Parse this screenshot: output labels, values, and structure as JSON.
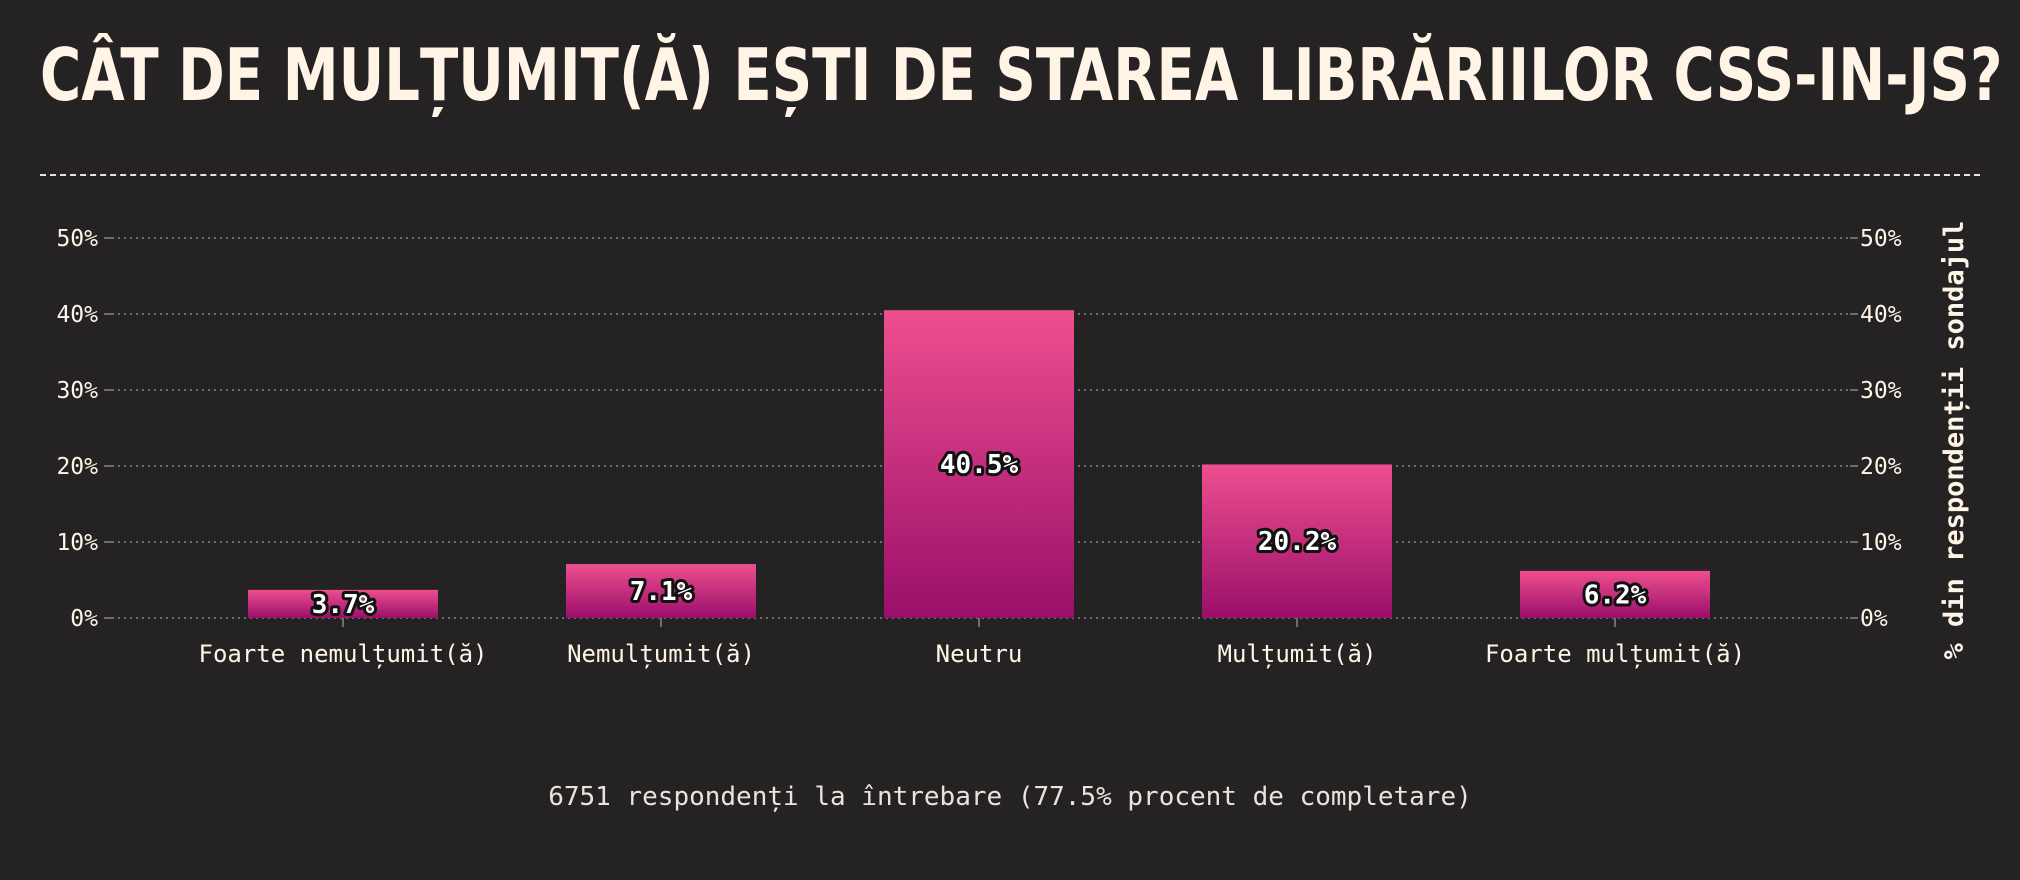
{
  "colors": {
    "background": "#252224",
    "text": "#fff4e6",
    "muted_text": "#e9e4da",
    "grid": "#8a8587",
    "bar_top": "#ee4f8f",
    "bar_bottom": "#9a0f6a"
  },
  "header": {
    "title": "CÂT DE MULȚUMIT(Ă) EȘTI DE STAREA LIBRĂRIILOR CSS-IN-JS?"
  },
  "footer": {
    "note": "6751 respondenți la întrebare (77.5% procent de completare)"
  },
  "chart_data": {
    "type": "bar",
    "title": "CÂT DE MULȚUMIT(Ă) EȘTI DE STAREA LIBRĂRIILOR CSS-IN-JS?",
    "categories": [
      "Foarte nemulțumit(ă)",
      "Nemulțumit(ă)",
      "Neutru",
      "Mulțumit(ă)",
      "Foarte mulțumit(ă)"
    ],
    "values": [
      3.7,
      7.1,
      40.5,
      20.2,
      6.2
    ],
    "value_labels": [
      "3.7%",
      "7.1%",
      "40.5%",
      "20.2%",
      "6.2%"
    ],
    "xlabel": "",
    "ylabel": "% din respondenții sondajul",
    "ylim": [
      0,
      50
    ],
    "yticks": [
      0,
      10,
      20,
      30,
      40,
      50
    ],
    "ytick_labels": [
      "0%",
      "10%",
      "20%",
      "30%",
      "40%",
      "50%"
    ],
    "y_axis_both_sides": true,
    "grid": true,
    "legend": "none"
  }
}
